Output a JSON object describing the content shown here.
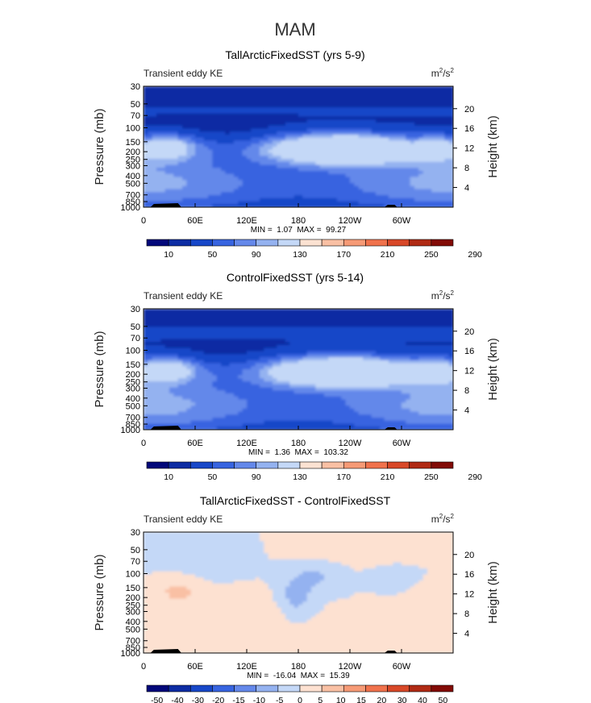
{
  "figure_title": "MAM",
  "colors": {
    "abs_scale": [
      "#02087a",
      "#0d2ca3",
      "#1747c8",
      "#3764e0",
      "#6488ea",
      "#94b2f0",
      "#c4d8f7",
      "#fbe2d2",
      "#f9c0a4",
      "#f69a76",
      "#f0724c",
      "#d84828",
      "#b02a14",
      "#820b06"
    ],
    "diff_scale": [
      "#02087a",
      "#0d2ca3",
      "#1747c8",
      "#3764e0",
      "#6488ea",
      "#94b2f0",
      "#c4d8f7",
      "#fde1d1",
      "#f9c0a4",
      "#f69a76",
      "#f0724c",
      "#d84828",
      "#b02a14",
      "#820b06"
    ],
    "terrain": "#000000"
  },
  "chart_data": [
    {
      "type": "heatmap",
      "title": "TallArcticFixedSST (yrs 5-9)",
      "left_label": "Transient eddy KE",
      "units_base": "m",
      "units_sup1": "2",
      "units_mid": "/s",
      "units_sup2": "2",
      "ylabel": "Pressure (mb)",
      "ylabel_right": "Height (km)",
      "x_ticks": [
        "0",
        "60E",
        "120E",
        "180",
        "120W",
        "60W"
      ],
      "y_ticks": [
        "30",
        "50",
        "70",
        "100",
        "150",
        "200",
        "250",
        "300",
        "400",
        "500",
        "700",
        "850",
        "1000"
      ],
      "y_ticks_right": [
        "20",
        "16",
        "12",
        "8",
        "4"
      ],
      "min_label": "MIN =",
      "min_value": "1.07",
      "max_label": "MAX =",
      "max_value": "99.27",
      "colorbar_labels": [
        "10",
        "50",
        "90",
        "130",
        "170",
        "210",
        "250",
        "290"
      ],
      "field": "abs1"
    },
    {
      "type": "heatmap",
      "title": "ControlFixedSST (yrs 5-14)",
      "left_label": "Transient eddy KE",
      "units_base": "m",
      "units_sup1": "2",
      "units_mid": "/s",
      "units_sup2": "2",
      "ylabel": "Pressure (mb)",
      "ylabel_right": "Height (km)",
      "x_ticks": [
        "0",
        "60E",
        "120E",
        "180",
        "120W",
        "60W"
      ],
      "y_ticks": [
        "30",
        "50",
        "70",
        "100",
        "150",
        "200",
        "250",
        "300",
        "400",
        "500",
        "700",
        "850",
        "1000"
      ],
      "y_ticks_right": [
        "20",
        "16",
        "12",
        "8",
        "4"
      ],
      "min_label": "MIN =",
      "min_value": "1.36",
      "max_label": "MAX =",
      "max_value": "103.32",
      "colorbar_labels": [
        "10",
        "50",
        "90",
        "130",
        "170",
        "210",
        "250",
        "290"
      ],
      "field": "abs2"
    },
    {
      "type": "heatmap",
      "title": "TallArcticFixedSST - ControlFixedSST",
      "left_label": "Transient eddy KE",
      "units_base": "m",
      "units_sup1": "2",
      "units_mid": "/s",
      "units_sup2": "2",
      "ylabel": "Pressure (mb)",
      "ylabel_right": "Height (km)",
      "x_ticks": [
        "0",
        "60E",
        "120E",
        "180",
        "120W",
        "60W"
      ],
      "y_ticks": [
        "30",
        "50",
        "70",
        "100",
        "150",
        "200",
        "250",
        "300",
        "400",
        "500",
        "700",
        "850",
        "1000"
      ],
      "y_ticks_right": [
        "20",
        "16",
        "12",
        "8",
        "4"
      ],
      "min_label": "MIN =",
      "min_value": "-16.04",
      "max_label": "MAX =",
      "max_value": "15.39",
      "colorbar_labels": [
        "-50",
        "-40",
        "-30",
        "-20",
        "-15",
        "-10",
        "-5",
        "0",
        "5",
        "10",
        "15",
        "20",
        "30",
        "40",
        "50"
      ],
      "field": "diff"
    }
  ]
}
